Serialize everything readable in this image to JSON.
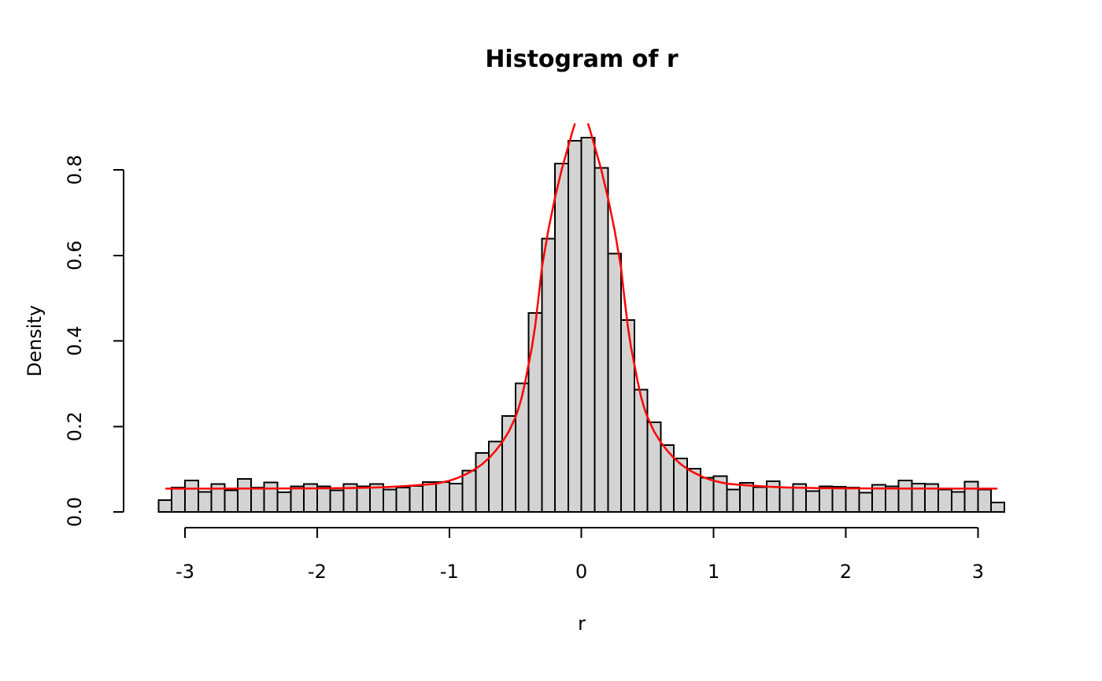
{
  "chart_data": {
    "type": "bar",
    "subtype": "histogram-with-density-curve",
    "title": "Histogram of r",
    "xlabel": "r",
    "ylabel": "Density",
    "grid": false,
    "legend": null,
    "xlim": [
      -3.35,
      3.35
    ],
    "ylim": [
      0,
      0.91
    ],
    "x_ticks": [
      -3,
      -2,
      -1,
      0,
      1,
      2,
      3
    ],
    "x_tick_labels": [
      "-3",
      "-2",
      "-1",
      "0",
      "1",
      "2",
      "3"
    ],
    "y_ticks": [
      0.0,
      0.2,
      0.4,
      0.6,
      0.8
    ],
    "y_tick_labels": [
      "0.0",
      "0.2",
      "0.4",
      "0.6",
      "0.8"
    ],
    "bins": {
      "start": -3.2,
      "width": 0.1,
      "densities": [
        0.028,
        0.057,
        0.074,
        0.047,
        0.065,
        0.051,
        0.077,
        0.057,
        0.069,
        0.046,
        0.06,
        0.065,
        0.06,
        0.051,
        0.065,
        0.06,
        0.065,
        0.052,
        0.057,
        0.061,
        0.07,
        0.07,
        0.066,
        0.097,
        0.138,
        0.165,
        0.224,
        0.301,
        0.465,
        0.639,
        0.815,
        0.868,
        0.875,
        0.805,
        0.604,
        0.449,
        0.286,
        0.21,
        0.156,
        0.125,
        0.101,
        0.08,
        0.084,
        0.052,
        0.068,
        0.058,
        0.072,
        0.057,
        0.065,
        0.049,
        0.06,
        0.059,
        0.057,
        0.045,
        0.063,
        0.06,
        0.074,
        0.066,
        0.065,
        0.052,
        0.047,
        0.071,
        0.052,
        0.022
      ]
    },
    "overlay_curve": {
      "name": "fitted-density-curve",
      "x": [
        -3.1416,
        -3.0,
        -2.8,
        -2.6,
        -2.4,
        -2.2,
        -2.0,
        -1.8,
        -1.6,
        -1.5,
        -1.4,
        -1.3,
        -1.2,
        -1.1,
        -1.0,
        -0.95,
        -0.9,
        -0.85,
        -0.8,
        -0.75,
        -0.7,
        -0.65,
        -0.6,
        -0.55,
        -0.5,
        -0.475,
        -0.45,
        -0.425,
        -0.4,
        -0.375,
        -0.35,
        -0.325,
        -0.3,
        -0.25,
        -0.2,
        -0.15,
        -0.1,
        -0.063,
        -0.031,
        0,
        0.031,
        0.063,
        0.1,
        0.15,
        0.2,
        0.25,
        0.3,
        0.325,
        0.35,
        0.375,
        0.4,
        0.425,
        0.45,
        0.475,
        0.5,
        0.55,
        0.6,
        0.65,
        0.7,
        0.75,
        0.8,
        0.85,
        0.9,
        0.95,
        1.0,
        1.1,
        1.2,
        1.3,
        1.4,
        1.5,
        1.6,
        1.8,
        2.0,
        2.2,
        2.4,
        2.6,
        2.8,
        3.0,
        3.1416
      ],
      "density": [
        0.0545,
        0.0545,
        0.0545,
        0.0546,
        0.0547,
        0.0549,
        0.0552,
        0.0558,
        0.0568,
        0.0578,
        0.0592,
        0.061,
        0.0635,
        0.066,
        0.073,
        0.078,
        0.0845,
        0.092,
        0.101,
        0.112,
        0.126,
        0.143,
        0.163,
        0.188,
        0.221,
        0.243,
        0.27,
        0.305,
        0.345,
        0.385,
        0.435,
        0.5,
        0.57,
        0.66,
        0.735,
        0.8,
        0.855,
        0.895,
        0.925,
        0.935,
        0.925,
        0.895,
        0.855,
        0.8,
        0.735,
        0.66,
        0.57,
        0.5,
        0.435,
        0.385,
        0.345,
        0.305,
        0.27,
        0.243,
        0.221,
        0.188,
        0.163,
        0.143,
        0.126,
        0.112,
        0.101,
        0.092,
        0.0845,
        0.078,
        0.073,
        0.066,
        0.0635,
        0.061,
        0.0592,
        0.0578,
        0.0568,
        0.0558,
        0.0552,
        0.0549,
        0.0547,
        0.0546,
        0.0545,
        0.0545,
        0.0545
      ]
    },
    "colors": {
      "bar_fill": "#d3d3d3",
      "bar_border": "#000000",
      "curve": "#ff0000",
      "axis": "#000000",
      "text": "#000000",
      "background": "#ffffff"
    }
  }
}
